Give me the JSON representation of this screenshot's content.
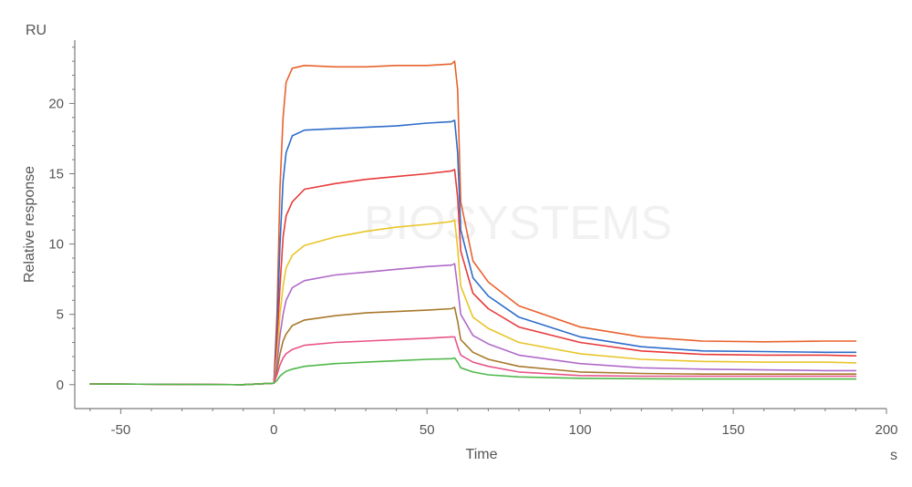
{
  "chart_data": {
    "type": "line",
    "title": "",
    "xlabel": "Time",
    "ylabel": "Relative response",
    "x_unit": "s",
    "y_unit": "RU",
    "xlim": [
      -65,
      200
    ],
    "ylim": [
      -1.7,
      24.5
    ],
    "x_ticks": [
      -50,
      0,
      50,
      100,
      150,
      200
    ],
    "x_tick_labels": [
      "-50",
      "0",
      "50",
      "100",
      "150",
      "200"
    ],
    "y_ticks": [
      0,
      5,
      10,
      15,
      20
    ],
    "y_tick_labels": [
      "0",
      "5",
      "10",
      "15",
      "20"
    ],
    "grid": false,
    "legend": "none",
    "watermark": "BIOSYSTEMS",
    "series": [
      {
        "color": "#e8622c",
        "x": [
          -60,
          -10,
          0,
          1,
          2,
          3,
          4,
          6,
          10,
          20,
          30,
          40,
          50,
          58,
          59,
          60,
          61,
          65,
          70,
          80,
          100,
          120,
          140,
          160,
          180,
          190
        ],
        "y": [
          0.05,
          0,
          0.1,
          5,
          14,
          19,
          21.5,
          22.5,
          22.7,
          22.6,
          22.6,
          22.7,
          22.7,
          22.8,
          23,
          21,
          13,
          8.8,
          7.3,
          5.6,
          4.1,
          3.4,
          3.1,
          3.05,
          3.1,
          3.1
        ]
      },
      {
        "color": "#2e6cc9",
        "x": [
          -60,
          -10,
          0,
          1,
          2,
          3,
          4,
          6,
          10,
          20,
          30,
          40,
          50,
          58,
          59,
          60,
          61,
          65,
          70,
          80,
          100,
          120,
          140,
          160,
          180,
          190
        ],
        "y": [
          0.05,
          0,
          0.1,
          4,
          10,
          14.5,
          16.5,
          17.7,
          18.1,
          18.2,
          18.3,
          18.4,
          18.6,
          18.7,
          18.8,
          16.5,
          11,
          7.6,
          6.3,
          4.8,
          3.4,
          2.7,
          2.4,
          2.35,
          2.3,
          2.3
        ]
      },
      {
        "color": "#e83a3a",
        "x": [
          -60,
          -10,
          0,
          1,
          2,
          3,
          4,
          6,
          10,
          20,
          30,
          40,
          50,
          58,
          59,
          60,
          61,
          65,
          70,
          80,
          100,
          120,
          140,
          160,
          180,
          190
        ],
        "y": [
          0.05,
          0,
          0.1,
          3,
          7,
          10.5,
          12,
          13,
          13.9,
          14.3,
          14.6,
          14.8,
          15,
          15.2,
          15.3,
          13.3,
          9.5,
          6.5,
          5.4,
          4.1,
          3.0,
          2.4,
          2.15,
          2.1,
          2.1,
          2.05
        ]
      },
      {
        "color": "#e8c52a",
        "x": [
          -60,
          -10,
          0,
          1,
          2,
          3,
          4,
          6,
          10,
          20,
          30,
          40,
          50,
          58,
          59,
          60,
          61,
          65,
          70,
          80,
          100,
          120,
          140,
          160,
          180,
          190
        ],
        "y": [
          0.05,
          0,
          0.1,
          2,
          5,
          7,
          8.3,
          9.2,
          9.9,
          10.5,
          10.9,
          11.2,
          11.4,
          11.6,
          11.7,
          9.7,
          7,
          4.8,
          4,
          3,
          2.2,
          1.8,
          1.65,
          1.6,
          1.6,
          1.55
        ]
      },
      {
        "color": "#b06ac8",
        "x": [
          -60,
          -10,
          0,
          1,
          2,
          3,
          4,
          6,
          10,
          20,
          30,
          40,
          50,
          58,
          59,
          60,
          61,
          65,
          70,
          80,
          100,
          120,
          140,
          160,
          180,
          190
        ],
        "y": [
          0.05,
          0,
          0.1,
          1.5,
          3.5,
          5,
          6,
          6.9,
          7.4,
          7.8,
          8.0,
          8.2,
          8.4,
          8.5,
          8.6,
          6.9,
          5,
          3.5,
          2.9,
          2.1,
          1.5,
          1.2,
          1.1,
          1.05,
          1.0,
          1.0
        ]
      },
      {
        "color": "#a8782a",
        "x": [
          -60,
          -10,
          0,
          1,
          2,
          3,
          4,
          6,
          10,
          20,
          30,
          40,
          50,
          58,
          59,
          60,
          61,
          65,
          70,
          80,
          100,
          120,
          140,
          160,
          180,
          190
        ],
        "y": [
          0.05,
          0,
          0.1,
          1,
          2.2,
          3.1,
          3.6,
          4.2,
          4.6,
          4.9,
          5.1,
          5.2,
          5.3,
          5.4,
          5.5,
          4.5,
          3.2,
          2.3,
          1.8,
          1.3,
          0.9,
          0.8,
          0.75,
          0.75,
          0.75,
          0.75
        ]
      },
      {
        "color": "#e8548a",
        "x": [
          -60,
          -10,
          0,
          1,
          2,
          3,
          4,
          6,
          10,
          20,
          30,
          40,
          50,
          58,
          59,
          60,
          61,
          65,
          70,
          80,
          100,
          120,
          140,
          160,
          180,
          190
        ],
        "y": [
          0.05,
          0,
          0.1,
          0.7,
          1.4,
          1.9,
          2.2,
          2.5,
          2.8,
          3.0,
          3.1,
          3.2,
          3.3,
          3.4,
          3.4,
          2.7,
          2.1,
          1.6,
          1.3,
          0.9,
          0.65,
          0.6,
          0.6,
          0.6,
          0.6,
          0.6
        ]
      },
      {
        "color": "#4fb84a",
        "x": [
          -60,
          -10,
          0,
          1,
          2,
          3,
          4,
          6,
          10,
          20,
          30,
          40,
          50,
          58,
          59,
          60,
          61,
          65,
          70,
          80,
          100,
          120,
          140,
          160,
          180,
          190
        ],
        "y": [
          0.05,
          0,
          0.1,
          0.3,
          0.6,
          0.8,
          0.95,
          1.1,
          1.3,
          1.5,
          1.6,
          1.7,
          1.8,
          1.85,
          1.9,
          1.6,
          1.2,
          0.9,
          0.7,
          0.55,
          0.45,
          0.42,
          0.4,
          0.4,
          0.4,
          0.4
        ]
      }
    ]
  }
}
